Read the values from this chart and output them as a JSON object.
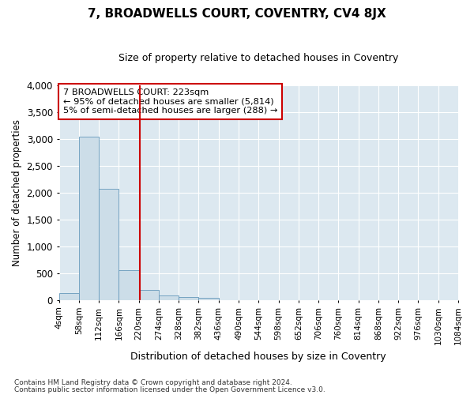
{
  "title": "7, BROADWELLS COURT, COVENTRY, CV4 8JX",
  "subtitle": "Size of property relative to detached houses in Coventry",
  "xlabel": "Distribution of detached houses by size in Coventry",
  "ylabel": "Number of detached properties",
  "footnote1": "Contains HM Land Registry data © Crown copyright and database right 2024.",
  "footnote2": "Contains public sector information licensed under the Open Government Licence v3.0.",
  "annotation_line1": "7 BROADWELLS COURT: 223sqm",
  "annotation_line2": "← 95% of detached houses are smaller (5,814)",
  "annotation_line3": "5% of semi-detached houses are larger (288) →",
  "property_size": 223,
  "bin_edges": [
    4,
    58,
    112,
    166,
    220,
    274,
    328,
    382,
    436,
    490,
    544,
    598,
    652,
    706,
    760,
    814,
    868,
    922,
    976,
    1030,
    1084
  ],
  "bar_heights": [
    130,
    3050,
    2080,
    560,
    190,
    80,
    60,
    50,
    0,
    0,
    0,
    0,
    0,
    0,
    0,
    0,
    0,
    0,
    0,
    0
  ],
  "bar_color": "#ccdde8",
  "bar_edge_color": "#6699bb",
  "vline_color": "#cc0000",
  "vline_x": 223,
  "ylim": [
    0,
    4000
  ],
  "yticks": [
    0,
    500,
    1000,
    1500,
    2000,
    2500,
    3000,
    3500,
    4000
  ],
  "fig_bg_color": "#ffffff",
  "plot_bg_color": "#dce8f0",
  "annotation_box_color": "#ffffff",
  "annotation_box_edge": "#cc0000",
  "grid_color": "#ffffff",
  "title_fontsize": 11,
  "subtitle_fontsize": 9,
  "ylabel_fontsize": 8.5,
  "xlabel_fontsize": 9,
  "ytick_fontsize": 8.5,
  "xtick_fontsize": 7.5,
  "footnote_fontsize": 6.5
}
